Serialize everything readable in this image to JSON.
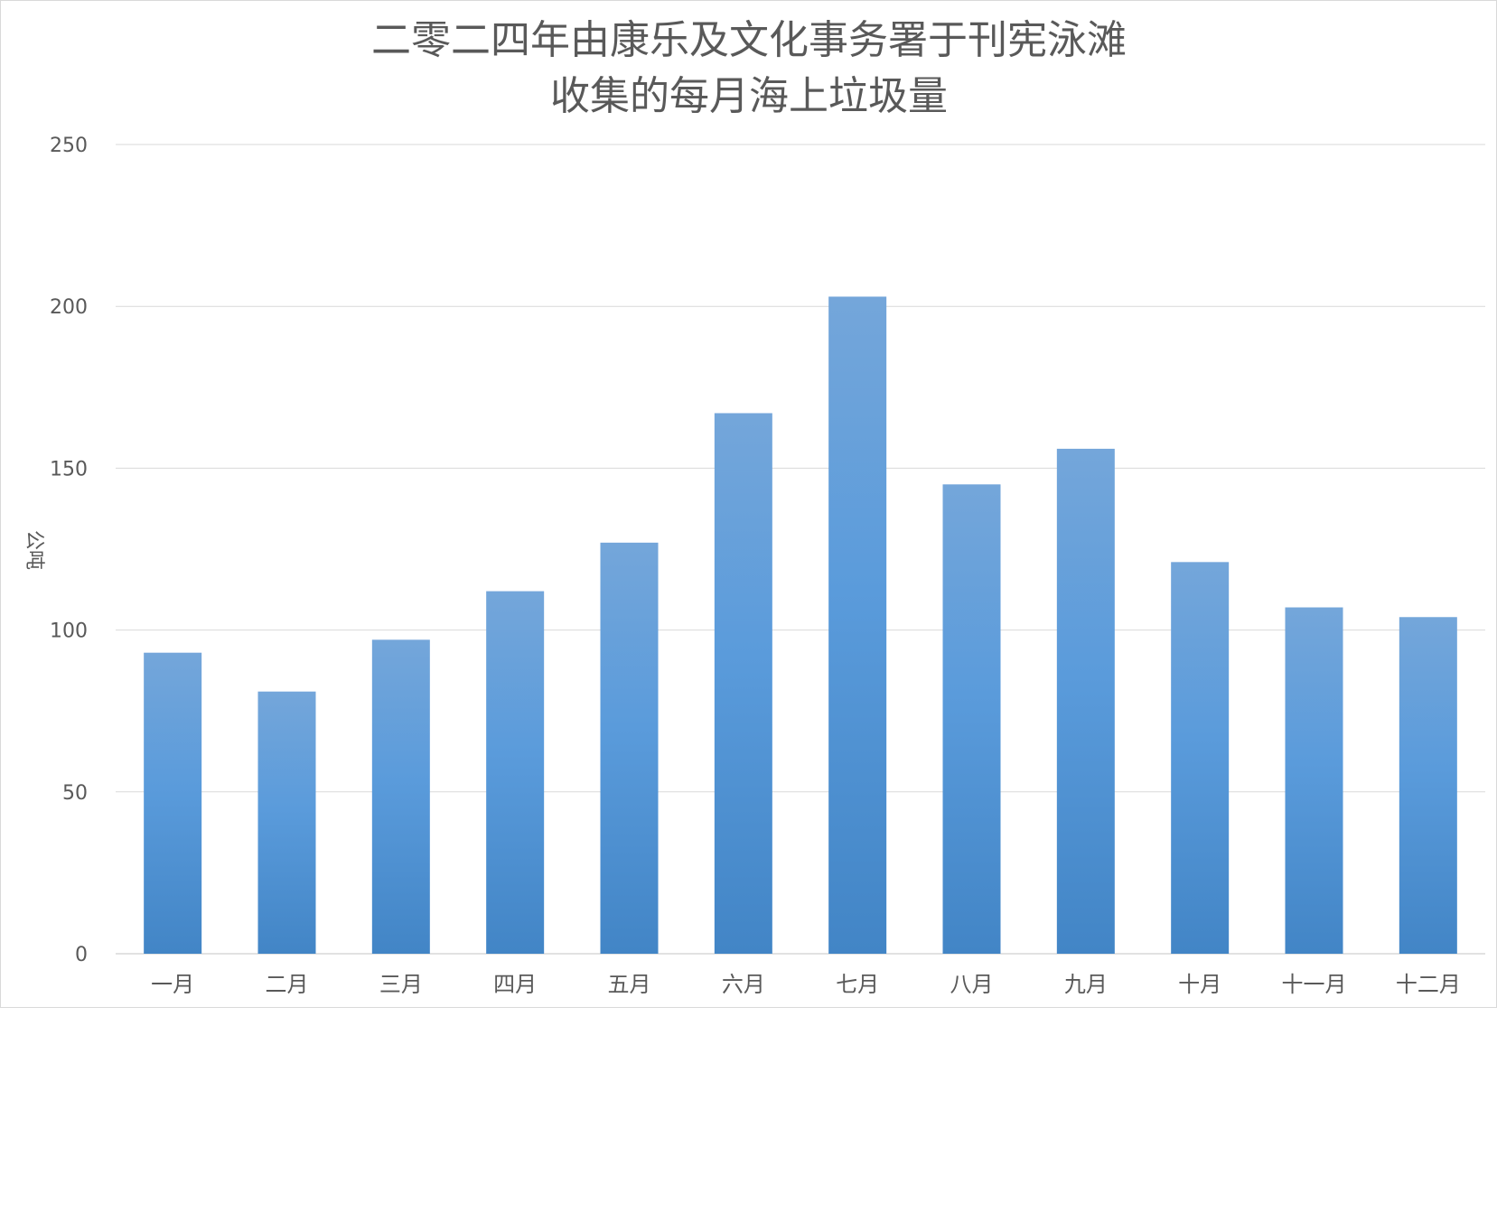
{
  "chart_data": {
    "type": "bar",
    "title_lines": [
      "二零二四年由康乐及文化事务署于刊宪泳滩",
      "收集的每月海上垃圾量"
    ],
    "ylabel": "公吨",
    "xlabel": "",
    "ylim": [
      0,
      250
    ],
    "yticks": [
      "0",
      "50",
      "100",
      "150",
      "200",
      "250"
    ],
    "ytick_values": [
      0,
      50,
      100,
      150,
      200,
      250
    ],
    "grid": true,
    "legend": "none",
    "categories": [
      "一月",
      "二月",
      "三月",
      "四月",
      "五月",
      "六月",
      "七月",
      "八月",
      "九月",
      "十月",
      "十一月",
      "十二月"
    ],
    "values": [
      93,
      81,
      97,
      112,
      127,
      167,
      203,
      145,
      156,
      121,
      107,
      104
    ],
    "colors": {
      "bar_top": "#74a6da",
      "bar_mid": "#5a9bdb",
      "bar_bottom": "#4285c6",
      "grid": "#d9d9d9",
      "text": "#595959"
    }
  }
}
